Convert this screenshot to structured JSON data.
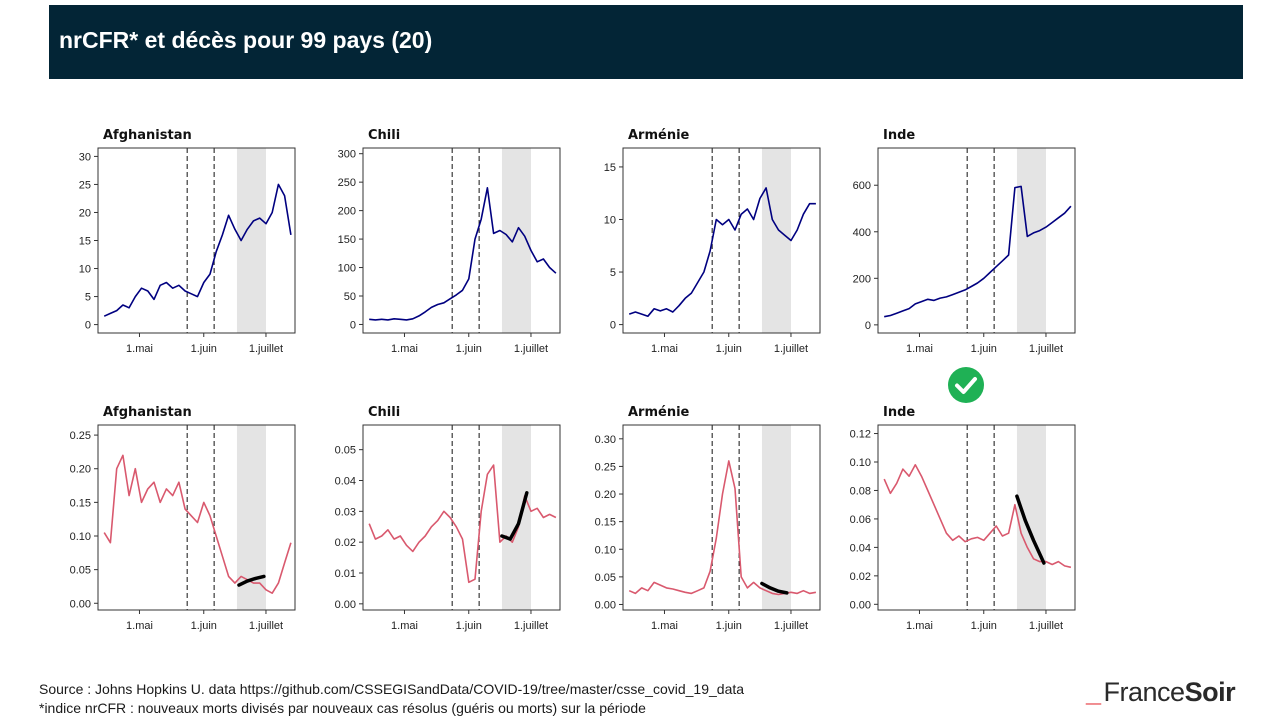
{
  "header": {
    "title": "nrCFR* et décès pour 99 pays (20)"
  },
  "footer": {
    "source": "Source : Johns Hopkins U. data https://github.com/CSSEGISandData/COVID-19/tree/master/csse_covid_19_data",
    "note": "*indice nrCFR : nouveaux morts divisés par nouveaux cas résolus (guéris ou morts) sur la période"
  },
  "brand": {
    "dash": "_",
    "part1": "France",
    "part2": "Soir"
  },
  "marker": {
    "icon": "check-circle-icon",
    "color": "#1fb155"
  },
  "colors": {
    "deaths_line": "#000080",
    "nrcfr_line": "#d9596e",
    "fit_line": "#000000",
    "shade": "#e4e4e4"
  },
  "chart_data": [
    {
      "type": "line",
      "title": "Afghanistan",
      "metric": "deaths",
      "x_ticks": [
        "1.mai",
        "1.juin",
        "1.juillet"
      ],
      "y_ticks": [
        0,
        5,
        10,
        15,
        20,
        25,
        30
      ],
      "ylim": [
        -1.5,
        31.5
      ],
      "vlines": [
        "24.mai",
        "6.juin"
      ],
      "shaded": [
        "17.juin",
        "1.juillet"
      ],
      "x": [
        "14.avril",
        "17.avril",
        "20.avril",
        "23.avril",
        "26.avril",
        "29.avril",
        "2.mai",
        "5.mai",
        "8.mai",
        "11.mai",
        "14.mai",
        "17.mai",
        "20.mai",
        "23.mai",
        "26.mai",
        "29.mai",
        "1.juin",
        "4.juin",
        "7.juin",
        "10.juin",
        "13.juin",
        "16.juin",
        "19.juin",
        "22.juin",
        "25.juin",
        "28.juin",
        "1.juillet",
        "4.juillet",
        "7.juillet",
        "10.juillet",
        "13.juillet"
      ],
      "values": [
        1.5,
        2,
        2.5,
        3.5,
        3,
        5,
        6.5,
        6,
        4.5,
        7,
        7.5,
        6.5,
        7,
        6,
        5.5,
        5,
        7.5,
        9,
        13,
        16,
        19.5,
        17,
        15,
        17,
        18.5,
        19,
        18,
        20,
        25,
        23,
        16
      ]
    },
    {
      "type": "line",
      "title": "Chili",
      "metric": "deaths",
      "x_ticks": [
        "1.mai",
        "1.juin",
        "1.juillet"
      ],
      "y_ticks": [
        0,
        50,
        100,
        150,
        200,
        250,
        300
      ],
      "ylim": [
        -15,
        310
      ],
      "vlines": [
        "24.mai",
        "6.juin"
      ],
      "shaded": [
        "17.juin",
        "1.juillet"
      ],
      "x": [
        "14.avril",
        "17.avril",
        "20.avril",
        "23.avril",
        "26.avril",
        "29.avril",
        "2.mai",
        "5.mai",
        "8.mai",
        "11.mai",
        "14.mai",
        "17.mai",
        "20.mai",
        "23.mai",
        "26.mai",
        "29.mai",
        "1.juin",
        "4.juin",
        "7.juin",
        "10.juin",
        "13.juin",
        "16.juin",
        "19.juin",
        "22.juin",
        "25.juin",
        "28.juin",
        "1.juillet",
        "4.juillet",
        "7.juillet",
        "10.juillet",
        "13.juillet"
      ],
      "values": [
        9,
        8,
        9,
        8,
        10,
        9,
        8,
        10,
        15,
        22,
        30,
        35,
        38,
        45,
        52,
        60,
        80,
        150,
        185,
        240,
        160,
        165,
        158,
        145,
        170,
        155,
        130,
        110,
        115,
        100,
        90
      ]
    },
    {
      "type": "line",
      "title": "Arménie",
      "metric": "deaths",
      "x_ticks": [
        "1.mai",
        "1.juin",
        "1.juillet"
      ],
      "y_ticks": [
        0,
        5,
        10,
        15
      ],
      "ylim": [
        -0.8,
        16.8
      ],
      "vlines": [
        "24.mai",
        "6.juin"
      ],
      "shaded": [
        "17.juin",
        "1.juillet"
      ],
      "x": [
        "14.avril",
        "17.avril",
        "20.avril",
        "23.avril",
        "26.avril",
        "29.avril",
        "2.mai",
        "5.mai",
        "8.mai",
        "11.mai",
        "14.mai",
        "17.mai",
        "20.mai",
        "23.mai",
        "26.mai",
        "29.mai",
        "1.juin",
        "4.juin",
        "7.juin",
        "10.juin",
        "13.juin",
        "16.juin",
        "19.juin",
        "22.juin",
        "25.juin",
        "28.juin",
        "1.juillet",
        "4.juillet",
        "7.juillet",
        "10.juillet",
        "13.juillet"
      ],
      "values": [
        1,
        1.2,
        1,
        0.8,
        1.5,
        1.3,
        1.5,
        1.2,
        1.8,
        2.5,
        3,
        4,
        5,
        7,
        10,
        9.5,
        10,
        9,
        10.5,
        11,
        10,
        12,
        13,
        10,
        9,
        8.5,
        8,
        9,
        10.5,
        11.5,
        11.5
      ]
    },
    {
      "type": "line",
      "title": "Inde",
      "metric": "deaths",
      "x_ticks": [
        "1.mai",
        "1.juin",
        "1.juillet"
      ],
      "y_ticks": [
        0,
        200,
        400,
        600
      ],
      "ylim": [
        -35,
        760
      ],
      "vlines": [
        "24.mai",
        "6.juin"
      ],
      "shaded": [
        "17.juin",
        "1.juillet"
      ],
      "x": [
        "14.avril",
        "17.avril",
        "20.avril",
        "23.avril",
        "26.avril",
        "29.avril",
        "2.mai",
        "5.mai",
        "8.mai",
        "11.mai",
        "14.mai",
        "17.mai",
        "20.mai",
        "23.mai",
        "26.mai",
        "29.mai",
        "1.juin",
        "4.juin",
        "7.juin",
        "10.juin",
        "13.juin",
        "16.juin",
        "19.juin",
        "22.juin",
        "25.juin",
        "28.juin",
        "1.juillet",
        "4.juillet",
        "7.juillet",
        "10.juillet",
        "13.juillet"
      ],
      "values": [
        35,
        40,
        50,
        60,
        70,
        90,
        100,
        110,
        105,
        115,
        120,
        130,
        140,
        150,
        165,
        180,
        200,
        225,
        250,
        275,
        300,
        590,
        595,
        380,
        395,
        405,
        420,
        440,
        460,
        480,
        510
      ]
    },
    {
      "type": "line",
      "title": "Afghanistan",
      "metric": "nrcfr",
      "x_ticks": [
        "1.mai",
        "1.juin",
        "1.juillet"
      ],
      "y_ticks": [
        "0.00",
        "0.05",
        "0.10",
        "0.15",
        "0.20",
        "0.25"
      ],
      "ylim": [
        -0.01,
        0.265
      ],
      "vlines": [
        "24.mai",
        "6.juin"
      ],
      "shaded": [
        "17.juin",
        "1.juillet"
      ],
      "x": [
        "14.avril",
        "17.avril",
        "20.avril",
        "23.avril",
        "26.avril",
        "29.avril",
        "2.mai",
        "5.mai",
        "8.mai",
        "11.mai",
        "14.mai",
        "17.mai",
        "20.mai",
        "23.mai",
        "26.mai",
        "29.mai",
        "1.juin",
        "4.juin",
        "7.juin",
        "10.juin",
        "13.juin",
        "16.juin",
        "19.juin",
        "22.juin",
        "25.juin",
        "28.juin",
        "1.juillet",
        "4.juillet",
        "7.juillet",
        "10.juillet",
        "13.juillet"
      ],
      "values": [
        0.105,
        0.09,
        0.2,
        0.22,
        0.16,
        0.2,
        0.15,
        0.17,
        0.18,
        0.15,
        0.17,
        0.16,
        0.18,
        0.14,
        0.13,
        0.12,
        0.15,
        0.13,
        0.1,
        0.07,
        0.04,
        0.03,
        0.04,
        0.035,
        0.03,
        0.03,
        0.02,
        0.015,
        0.03,
        0.06,
        0.09
      ],
      "fit": {
        "x": [
          "18.juin",
          "22.juin",
          "26.juin",
          "30.juin"
        ],
        "values": [
          0.027,
          0.033,
          0.037,
          0.04
        ]
      }
    },
    {
      "type": "line",
      "title": "Chili",
      "metric": "nrcfr",
      "x_ticks": [
        "1.mai",
        "1.juin",
        "1.juillet"
      ],
      "y_ticks": [
        "0.00",
        "0.01",
        "0.02",
        "0.03",
        "0.04",
        "0.05"
      ],
      "ylim": [
        -0.002,
        0.058
      ],
      "vlines": [
        "24.mai",
        "6.juin"
      ],
      "shaded": [
        "17.juin",
        "1.juillet"
      ],
      "x": [
        "14.avril",
        "17.avril",
        "20.avril",
        "23.avril",
        "26.avril",
        "29.avril",
        "2.mai",
        "5.mai",
        "8.mai",
        "11.mai",
        "14.mai",
        "17.mai",
        "20.mai",
        "23.mai",
        "26.mai",
        "29.mai",
        "1.juin",
        "4.juin",
        "7.juin",
        "10.juin",
        "13.juin",
        "16.juin",
        "19.juin",
        "22.juin",
        "25.juin",
        "28.juin",
        "1.juillet",
        "4.juillet",
        "7.juillet",
        "10.juillet",
        "13.juillet"
      ],
      "values": [
        0.026,
        0.021,
        0.022,
        0.024,
        0.021,
        0.022,
        0.019,
        0.017,
        0.02,
        0.022,
        0.025,
        0.027,
        0.03,
        0.028,
        0.025,
        0.021,
        0.007,
        0.008,
        0.03,
        0.042,
        0.045,
        0.02,
        0.022,
        0.02,
        0.025,
        0.035,
        0.03,
        0.031,
        0.028,
        0.029,
        0.028
      ],
      "fit": {
        "x": [
          "17.juin",
          "21.juin",
          "25.juin",
          "29.juin"
        ],
        "values": [
          0.022,
          0.021,
          0.026,
          0.036
        ]
      }
    },
    {
      "type": "line",
      "title": "Arménie",
      "metric": "nrcfr",
      "x_ticks": [
        "1.mai",
        "1.juin",
        "1.juillet"
      ],
      "y_ticks": [
        "0.00",
        "0.05",
        "0.10",
        "0.15",
        "0.20",
        "0.25",
        "0.30"
      ],
      "ylim": [
        -0.01,
        0.325
      ],
      "vlines": [
        "24.mai",
        "6.juin"
      ],
      "shaded": [
        "17.juin",
        "1.juillet"
      ],
      "x": [
        "14.avril",
        "17.avril",
        "20.avril",
        "23.avril",
        "26.avril",
        "29.avril",
        "2.mai",
        "5.mai",
        "8.mai",
        "11.mai",
        "14.mai",
        "17.mai",
        "20.mai",
        "23.mai",
        "26.mai",
        "29.mai",
        "1.juin",
        "4.juin",
        "7.juin",
        "10.juin",
        "13.juin",
        "16.juin",
        "19.juin",
        "22.juin",
        "25.juin",
        "28.juin",
        "1.juillet",
        "4.juillet",
        "7.juillet",
        "10.juillet",
        "13.juillet"
      ],
      "values": [
        0.025,
        0.02,
        0.03,
        0.025,
        0.04,
        0.035,
        0.03,
        0.028,
        0.025,
        0.022,
        0.02,
        0.025,
        0.03,
        0.06,
        0.12,
        0.2,
        0.26,
        0.21,
        0.05,
        0.03,
        0.04,
        0.03,
        0.025,
        0.02,
        0.018,
        0.02,
        0.022,
        0.02,
        0.025,
        0.02,
        0.022
      ],
      "fit": {
        "x": [
          "17.juin",
          "21.juin",
          "25.juin",
          "29.juin"
        ],
        "values": [
          0.038,
          0.03,
          0.024,
          0.021
        ]
      }
    },
    {
      "type": "line",
      "title": "Inde",
      "metric": "nrcfr",
      "x_ticks": [
        "1.mai",
        "1.juin",
        "1.juillet"
      ],
      "y_ticks": [
        "0.00",
        "0.02",
        "0.04",
        "0.06",
        "0.08",
        "0.10",
        "0.12"
      ],
      "ylim": [
        -0.004,
        0.126
      ],
      "vlines": [
        "24.mai",
        "6.juin"
      ],
      "shaded": [
        "17.juin",
        "1.juillet"
      ],
      "x": [
        "14.avril",
        "17.avril",
        "20.avril",
        "23.avril",
        "26.avril",
        "29.avril",
        "2.mai",
        "5.mai",
        "8.mai",
        "11.mai",
        "14.mai",
        "17.mai",
        "20.mai",
        "23.mai",
        "26.mai",
        "29.mai",
        "1.juin",
        "4.juin",
        "7.juin",
        "10.juin",
        "13.juin",
        "16.juin",
        "19.juin",
        "22.juin",
        "25.juin",
        "28.juin",
        "1.juillet",
        "4.juillet",
        "7.juillet",
        "10.juillet",
        "13.juillet"
      ],
      "values": [
        0.088,
        0.078,
        0.085,
        0.095,
        0.09,
        0.098,
        0.09,
        0.08,
        0.07,
        0.06,
        0.05,
        0.045,
        0.048,
        0.044,
        0.046,
        0.047,
        0.045,
        0.05,
        0.055,
        0.048,
        0.05,
        0.07,
        0.05,
        0.04,
        0.032,
        0.03,
        0.03,
        0.028,
        0.03,
        0.027,
        0.026
      ],
      "fit": {
        "x": [
          "17.juin",
          "21.juin",
          "25.juin",
          "30.juin"
        ],
        "values": [
          0.076,
          0.059,
          0.045,
          0.029
        ]
      }
    }
  ]
}
